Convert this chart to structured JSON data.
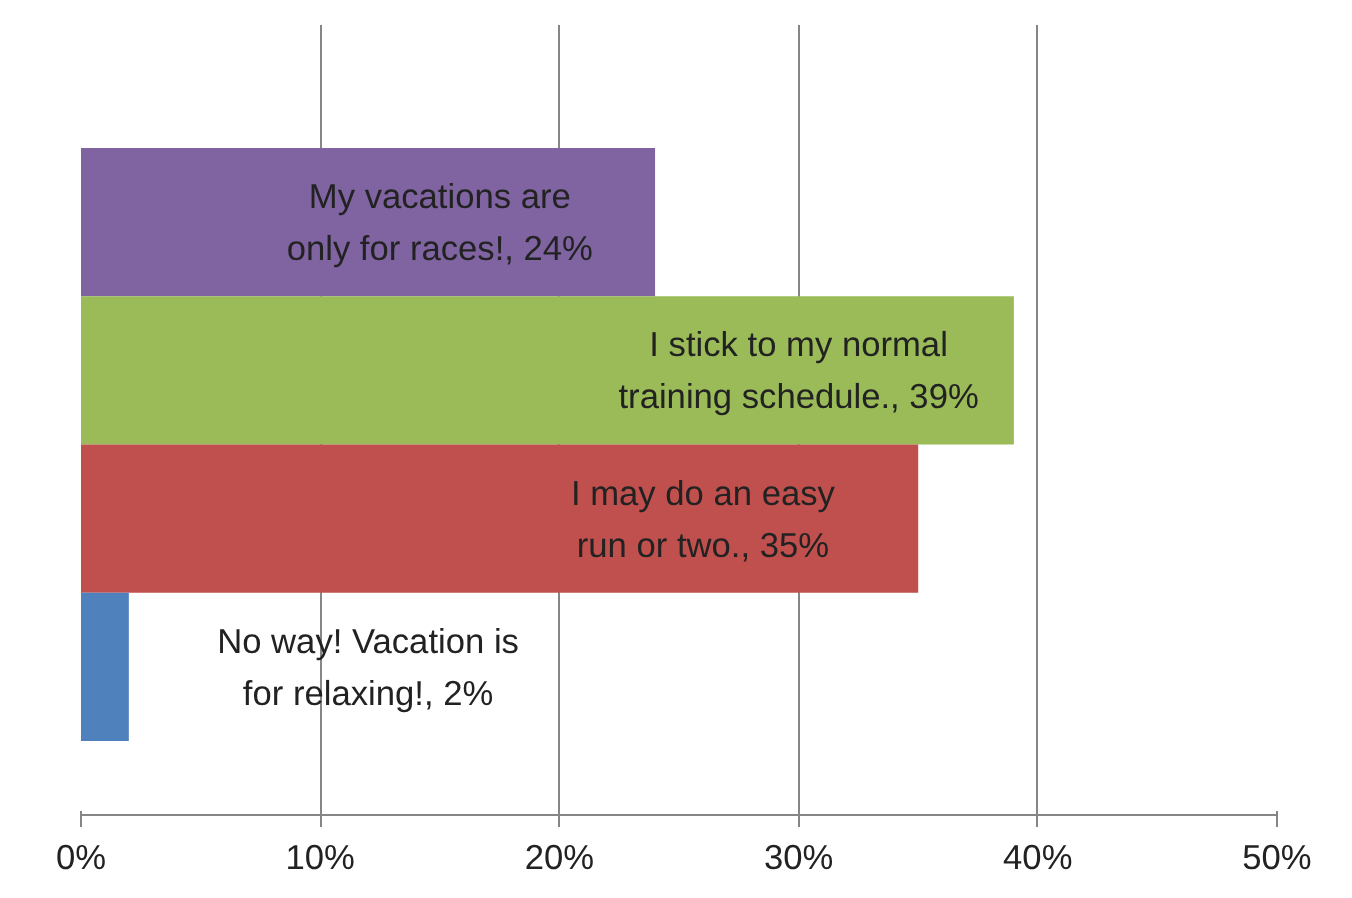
{
  "chart_data": {
    "type": "bar",
    "orientation": "horizontal",
    "categories": [
      null,
      null,
      null,
      null
    ],
    "values": [
      24,
      39,
      35,
      2
    ],
    "colors": [
      "#8064a2",
      "#9bbb59",
      "#c0504d",
      "#4f81bd"
    ],
    "value_labels": [
      "My vacations are\nonly for races!, 24%",
      "I stick to my normal\ntraining schedule., 39%",
      "I may do an easy\nrun or two., 35%",
      "No way! Vacation is\nfor relaxing!, 2%"
    ],
    "xlim": [
      0,
      50
    ],
    "xticks": [
      {
        "value": 0,
        "label": "0%"
      },
      {
        "value": 10,
        "label": "10%"
      },
      {
        "value": 20,
        "label": "20%"
      },
      {
        "value": 30,
        "label": "30%"
      },
      {
        "value": 40,
        "label": "40%"
      },
      {
        "value": 50,
        "label": "50%"
      }
    ],
    "grid": "x",
    "tick_labels": "x"
  }
}
